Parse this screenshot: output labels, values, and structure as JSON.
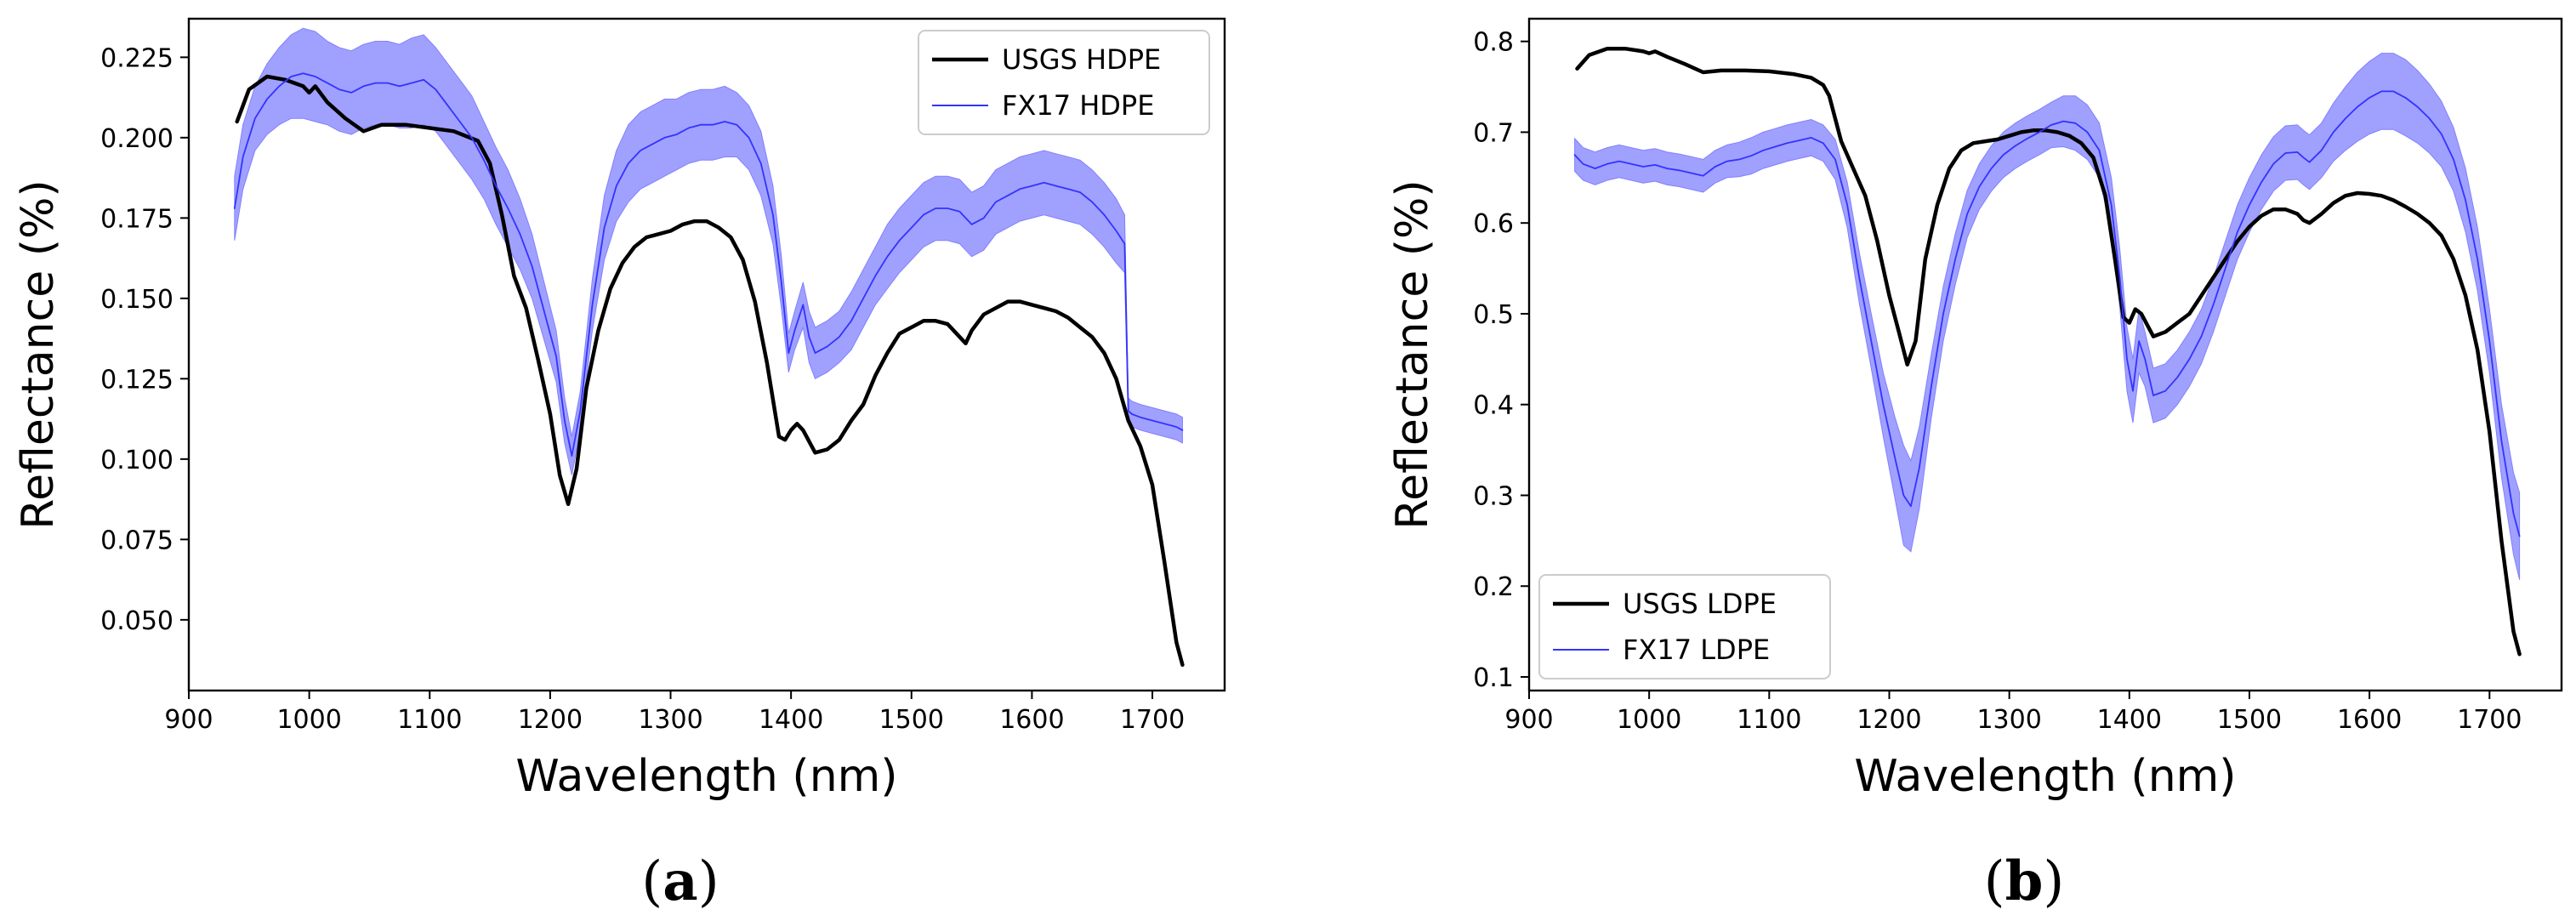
{
  "chart_data": [
    {
      "type": "line",
      "panel_label": "(a)",
      "panel_letter": "a",
      "xlabel": "Wavelength (nm)",
      "ylabel": "Reflectance (%)",
      "xlim": [
        900,
        1760
      ],
      "ylim": [
        0.028,
        0.237
      ],
      "xticks": [
        900,
        1000,
        1100,
        1200,
        1300,
        1400,
        1500,
        1600,
        1700
      ],
      "yticks": [
        0.05,
        0.075,
        0.1,
        0.125,
        0.15,
        0.175,
        0.2,
        0.225
      ],
      "ytick_labels": [
        "0.050",
        "0.075",
        "0.100",
        "0.125",
        "0.150",
        "0.175",
        "0.200",
        "0.225"
      ],
      "legend_position": "upper right",
      "series": [
        {
          "name": "USGS HDPE",
          "color": "#000000",
          "x": [
            940,
            950,
            965,
            980,
            995,
            1000,
            1005,
            1015,
            1030,
            1045,
            1060,
            1080,
            1100,
            1120,
            1140,
            1150,
            1160,
            1170,
            1180,
            1190,
            1200,
            1208,
            1215,
            1222,
            1230,
            1240,
            1250,
            1260,
            1270,
            1280,
            1290,
            1300,
            1310,
            1320,
            1330,
            1340,
            1350,
            1360,
            1370,
            1380,
            1390,
            1395,
            1400,
            1405,
            1410,
            1420,
            1430,
            1440,
            1450,
            1460,
            1470,
            1480,
            1490,
            1500,
            1510,
            1520,
            1530,
            1540,
            1545,
            1550,
            1560,
            1570,
            1580,
            1590,
            1600,
            1610,
            1620,
            1630,
            1640,
            1650,
            1660,
            1670,
            1680,
            1690,
            1700,
            1710,
            1720,
            1725
          ],
          "y": [
            0.205,
            0.215,
            0.219,
            0.218,
            0.216,
            0.214,
            0.216,
            0.211,
            0.206,
            0.202,
            0.204,
            0.204,
            0.203,
            0.202,
            0.199,
            0.192,
            0.176,
            0.157,
            0.147,
            0.131,
            0.114,
            0.095,
            0.086,
            0.097,
            0.122,
            0.14,
            0.153,
            0.161,
            0.166,
            0.169,
            0.17,
            0.171,
            0.173,
            0.174,
            0.174,
            0.172,
            0.169,
            0.162,
            0.149,
            0.13,
            0.107,
            0.106,
            0.109,
            0.111,
            0.109,
            0.102,
            0.103,
            0.106,
            0.112,
            0.117,
            0.126,
            0.133,
            0.139,
            0.141,
            0.143,
            0.143,
            0.142,
            0.138,
            0.136,
            0.14,
            0.145,
            0.147,
            0.149,
            0.149,
            0.148,
            0.147,
            0.146,
            0.144,
            0.141,
            0.138,
            0.133,
            0.125,
            0.112,
            0.104,
            0.092,
            0.068,
            0.043,
            0.036
          ]
        },
        {
          "name": "FX17 HDPE",
          "color": "#3333ff",
          "band_color": "#8080ff",
          "x": [
            938,
            945,
            955,
            965,
            975,
            985,
            995,
            1005,
            1015,
            1025,
            1035,
            1045,
            1055,
            1065,
            1075,
            1085,
            1095,
            1105,
            1115,
            1125,
            1135,
            1145,
            1155,
            1165,
            1175,
            1185,
            1195,
            1205,
            1212,
            1218,
            1225,
            1235,
            1245,
            1255,
            1265,
            1275,
            1285,
            1295,
            1305,
            1315,
            1325,
            1335,
            1345,
            1355,
            1365,
            1375,
            1385,
            1392,
            1398,
            1403,
            1410,
            1415,
            1420,
            1430,
            1440,
            1450,
            1460,
            1470,
            1480,
            1490,
            1500,
            1510,
            1520,
            1530,
            1540,
            1545,
            1550,
            1560,
            1570,
            1580,
            1590,
            1600,
            1610,
            1620,
            1630,
            1640,
            1650,
            1660,
            1670,
            1677,
            1680,
            1683,
            1690,
            1700,
            1710,
            1720,
            1725
          ],
          "y": [
            0.178,
            0.194,
            0.206,
            0.212,
            0.216,
            0.219,
            0.22,
            0.219,
            0.217,
            0.215,
            0.214,
            0.216,
            0.217,
            0.217,
            0.216,
            0.217,
            0.218,
            0.215,
            0.21,
            0.205,
            0.2,
            0.193,
            0.185,
            0.178,
            0.17,
            0.16,
            0.146,
            0.132,
            0.112,
            0.101,
            0.115,
            0.148,
            0.172,
            0.185,
            0.192,
            0.196,
            0.198,
            0.2,
            0.201,
            0.203,
            0.204,
            0.204,
            0.205,
            0.204,
            0.2,
            0.192,
            0.176,
            0.155,
            0.133,
            0.14,
            0.148,
            0.138,
            0.133,
            0.135,
            0.138,
            0.143,
            0.15,
            0.157,
            0.163,
            0.168,
            0.172,
            0.176,
            0.178,
            0.178,
            0.177,
            0.175,
            0.173,
            0.175,
            0.18,
            0.182,
            0.184,
            0.185,
            0.186,
            0.185,
            0.184,
            0.183,
            0.18,
            0.176,
            0.171,
            0.167,
            0.115,
            0.114,
            0.113,
            0.112,
            0.111,
            0.11,
            0.109
          ],
          "spread": [
            0.01,
            0.01,
            0.01,
            0.011,
            0.012,
            0.013,
            0.014,
            0.014,
            0.013,
            0.013,
            0.013,
            0.013,
            0.013,
            0.013,
            0.013,
            0.014,
            0.014,
            0.013,
            0.013,
            0.013,
            0.013,
            0.012,
            0.012,
            0.012,
            0.011,
            0.01,
            0.009,
            0.008,
            0.007,
            0.006,
            0.006,
            0.008,
            0.01,
            0.011,
            0.012,
            0.012,
            0.012,
            0.012,
            0.011,
            0.011,
            0.011,
            0.011,
            0.011,
            0.01,
            0.01,
            0.01,
            0.009,
            0.008,
            0.006,
            0.006,
            0.007,
            0.008,
            0.008,
            0.008,
            0.008,
            0.009,
            0.009,
            0.009,
            0.01,
            0.01,
            0.01,
            0.01,
            0.01,
            0.01,
            0.01,
            0.01,
            0.01,
            0.01,
            0.01,
            0.01,
            0.01,
            0.01,
            0.01,
            0.01,
            0.01,
            0.01,
            0.01,
            0.01,
            0.01,
            0.009,
            0.004,
            0.004,
            0.004,
            0.004,
            0.004,
            0.004,
            0.004
          ]
        }
      ]
    },
    {
      "type": "line",
      "panel_label": "(b)",
      "panel_letter": "b",
      "xlabel": "Wavelength (nm)",
      "ylabel": "Reflectance (%)",
      "xlim": [
        900,
        1760
      ],
      "ylim": [
        0.085,
        0.825
      ],
      "xticks": [
        900,
        1000,
        1100,
        1200,
        1300,
        1400,
        1500,
        1600,
        1700
      ],
      "yticks": [
        0.1,
        0.2,
        0.3,
        0.4,
        0.5,
        0.6,
        0.7,
        0.8
      ],
      "ytick_labels": [
        "0.1",
        "0.2",
        "0.3",
        "0.4",
        "0.5",
        "0.6",
        "0.7",
        "0.8"
      ],
      "legend_position": "lower left",
      "series": [
        {
          "name": "USGS LDPE",
          "color": "#000000",
          "x": [
            940,
            950,
            965,
            980,
            995,
            1000,
            1005,
            1015,
            1030,
            1045,
            1060,
            1080,
            1100,
            1120,
            1135,
            1145,
            1150,
            1160,
            1170,
            1180,
            1190,
            1200,
            1208,
            1215,
            1222,
            1230,
            1240,
            1250,
            1260,
            1270,
            1280,
            1290,
            1300,
            1310,
            1320,
            1330,
            1340,
            1350,
            1360,
            1370,
            1380,
            1388,
            1395,
            1400,
            1405,
            1410,
            1420,
            1430,
            1440,
            1450,
            1460,
            1470,
            1480,
            1490,
            1500,
            1510,
            1520,
            1530,
            1540,
            1545,
            1550,
            1560,
            1570,
            1580,
            1590,
            1600,
            1610,
            1620,
            1630,
            1640,
            1650,
            1660,
            1670,
            1680,
            1690,
            1700,
            1710,
            1720,
            1725
          ],
          "y": [
            0.77,
            0.785,
            0.792,
            0.792,
            0.789,
            0.787,
            0.789,
            0.783,
            0.775,
            0.766,
            0.768,
            0.768,
            0.767,
            0.764,
            0.76,
            0.752,
            0.74,
            0.69,
            0.66,
            0.63,
            0.58,
            0.52,
            0.48,
            0.444,
            0.47,
            0.56,
            0.62,
            0.66,
            0.68,
            0.688,
            0.69,
            0.692,
            0.696,
            0.7,
            0.702,
            0.702,
            0.7,
            0.696,
            0.688,
            0.672,
            0.63,
            0.56,
            0.496,
            0.49,
            0.505,
            0.5,
            0.475,
            0.48,
            0.49,
            0.5,
            0.52,
            0.54,
            0.56,
            0.58,
            0.596,
            0.608,
            0.615,
            0.615,
            0.61,
            0.603,
            0.6,
            0.61,
            0.622,
            0.63,
            0.633,
            0.632,
            0.63,
            0.625,
            0.618,
            0.61,
            0.6,
            0.586,
            0.56,
            0.52,
            0.46,
            0.37,
            0.25,
            0.15,
            0.125
          ]
        },
        {
          "name": "FX17 LDPE",
          "color": "#3333ff",
          "band_color": "#8080ff",
          "x": [
            938,
            945,
            955,
            965,
            975,
            985,
            995,
            1005,
            1015,
            1025,
            1035,
            1045,
            1055,
            1065,
            1075,
            1085,
            1095,
            1105,
            1115,
            1125,
            1135,
            1145,
            1155,
            1165,
            1175,
            1185,
            1195,
            1205,
            1212,
            1218,
            1225,
            1235,
            1245,
            1255,
            1265,
            1275,
            1285,
            1295,
            1305,
            1315,
            1325,
            1335,
            1345,
            1355,
            1365,
            1375,
            1385,
            1392,
            1398,
            1403,
            1408,
            1413,
            1420,
            1430,
            1440,
            1450,
            1460,
            1470,
            1480,
            1490,
            1500,
            1510,
            1520,
            1530,
            1540,
            1545,
            1550,
            1560,
            1570,
            1580,
            1590,
            1600,
            1610,
            1620,
            1630,
            1640,
            1650,
            1660,
            1670,
            1680,
            1690,
            1700,
            1710,
            1720,
            1725
          ],
          "y": [
            0.675,
            0.665,
            0.66,
            0.665,
            0.668,
            0.665,
            0.662,
            0.664,
            0.66,
            0.658,
            0.655,
            0.652,
            0.662,
            0.668,
            0.67,
            0.674,
            0.68,
            0.684,
            0.688,
            0.691,
            0.694,
            0.688,
            0.67,
            0.62,
            0.54,
            0.47,
            0.4,
            0.34,
            0.3,
            0.288,
            0.33,
            0.42,
            0.5,
            0.56,
            0.61,
            0.64,
            0.66,
            0.675,
            0.685,
            0.693,
            0.7,
            0.708,
            0.712,
            0.71,
            0.7,
            0.68,
            0.62,
            0.54,
            0.45,
            0.415,
            0.47,
            0.45,
            0.41,
            0.415,
            0.43,
            0.45,
            0.475,
            0.51,
            0.55,
            0.59,
            0.62,
            0.645,
            0.665,
            0.677,
            0.678,
            0.672,
            0.667,
            0.68,
            0.7,
            0.715,
            0.728,
            0.738,
            0.745,
            0.745,
            0.738,
            0.728,
            0.715,
            0.698,
            0.67,
            0.625,
            0.56,
            0.47,
            0.36,
            0.28,
            0.255
          ],
          "spread": [
            0.018,
            0.018,
            0.018,
            0.018,
            0.018,
            0.018,
            0.018,
            0.018,
            0.018,
            0.018,
            0.018,
            0.018,
            0.018,
            0.018,
            0.019,
            0.02,
            0.02,
            0.02,
            0.02,
            0.02,
            0.02,
            0.02,
            0.022,
            0.025,
            0.028,
            0.03,
            0.035,
            0.045,
            0.055,
            0.05,
            0.045,
            0.035,
            0.03,
            0.028,
            0.026,
            0.025,
            0.025,
            0.025,
            0.025,
            0.025,
            0.025,
            0.025,
            0.028,
            0.03,
            0.03,
            0.03,
            0.03,
            0.032,
            0.035,
            0.035,
            0.035,
            0.03,
            0.03,
            0.03,
            0.03,
            0.03,
            0.03,
            0.03,
            0.03,
            0.03,
            0.03,
            0.03,
            0.03,
            0.03,
            0.03,
            0.03,
            0.03,
            0.03,
            0.032,
            0.035,
            0.038,
            0.04,
            0.042,
            0.042,
            0.042,
            0.04,
            0.038,
            0.036,
            0.035,
            0.035,
            0.035,
            0.035,
            0.04,
            0.045,
            0.048
          ]
        }
      ]
    }
  ]
}
